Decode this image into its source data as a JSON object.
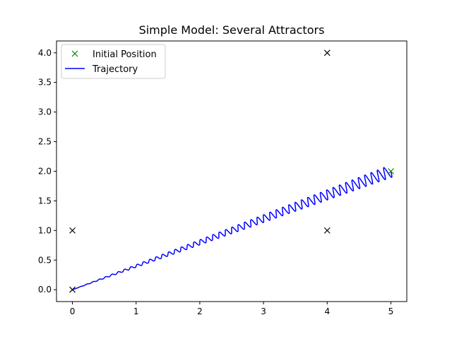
{
  "chart_data": {
    "type": "scatter",
    "title": "Simple Model: Several Attractors",
    "xlabel": "",
    "ylabel": "",
    "xlim": [
      -0.25,
      5.25
    ],
    "ylim": [
      -0.2,
      4.2
    ],
    "xticks": [
      0,
      1,
      2,
      3,
      4,
      5
    ],
    "yticks": [
      0.0,
      0.5,
      1.0,
      1.5,
      2.0,
      2.5,
      3.0,
      3.5,
      4.0
    ],
    "xtick_labels": [
      "0",
      "1",
      "2",
      "3",
      "4",
      "5"
    ],
    "ytick_labels": [
      "0.0",
      "0.5",
      "1.0",
      "1.5",
      "2.0",
      "2.5",
      "3.0",
      "3.5",
      "4.0"
    ],
    "grid": false,
    "legend_position": "top-left",
    "attractors": {
      "marker": "x",
      "color": "#000000",
      "points": [
        [
          0,
          0
        ],
        [
          0,
          1
        ],
        [
          4,
          1
        ],
        [
          4,
          4
        ]
      ]
    },
    "series": [
      {
        "name": "Initial Position",
        "kind": "marker",
        "marker": "x",
        "color": "#008000",
        "points": [
          [
            5,
            2
          ]
        ]
      },
      {
        "name": "Trajectory",
        "kind": "line",
        "color": "#0000ff",
        "start": [
          5,
          2
        ],
        "end": [
          0,
          0
        ],
        "oscillation_cycles": 50,
        "oscillation_amplitude_start": 0.1,
        "oscillation_amplitude_end": 0.0
      }
    ]
  }
}
